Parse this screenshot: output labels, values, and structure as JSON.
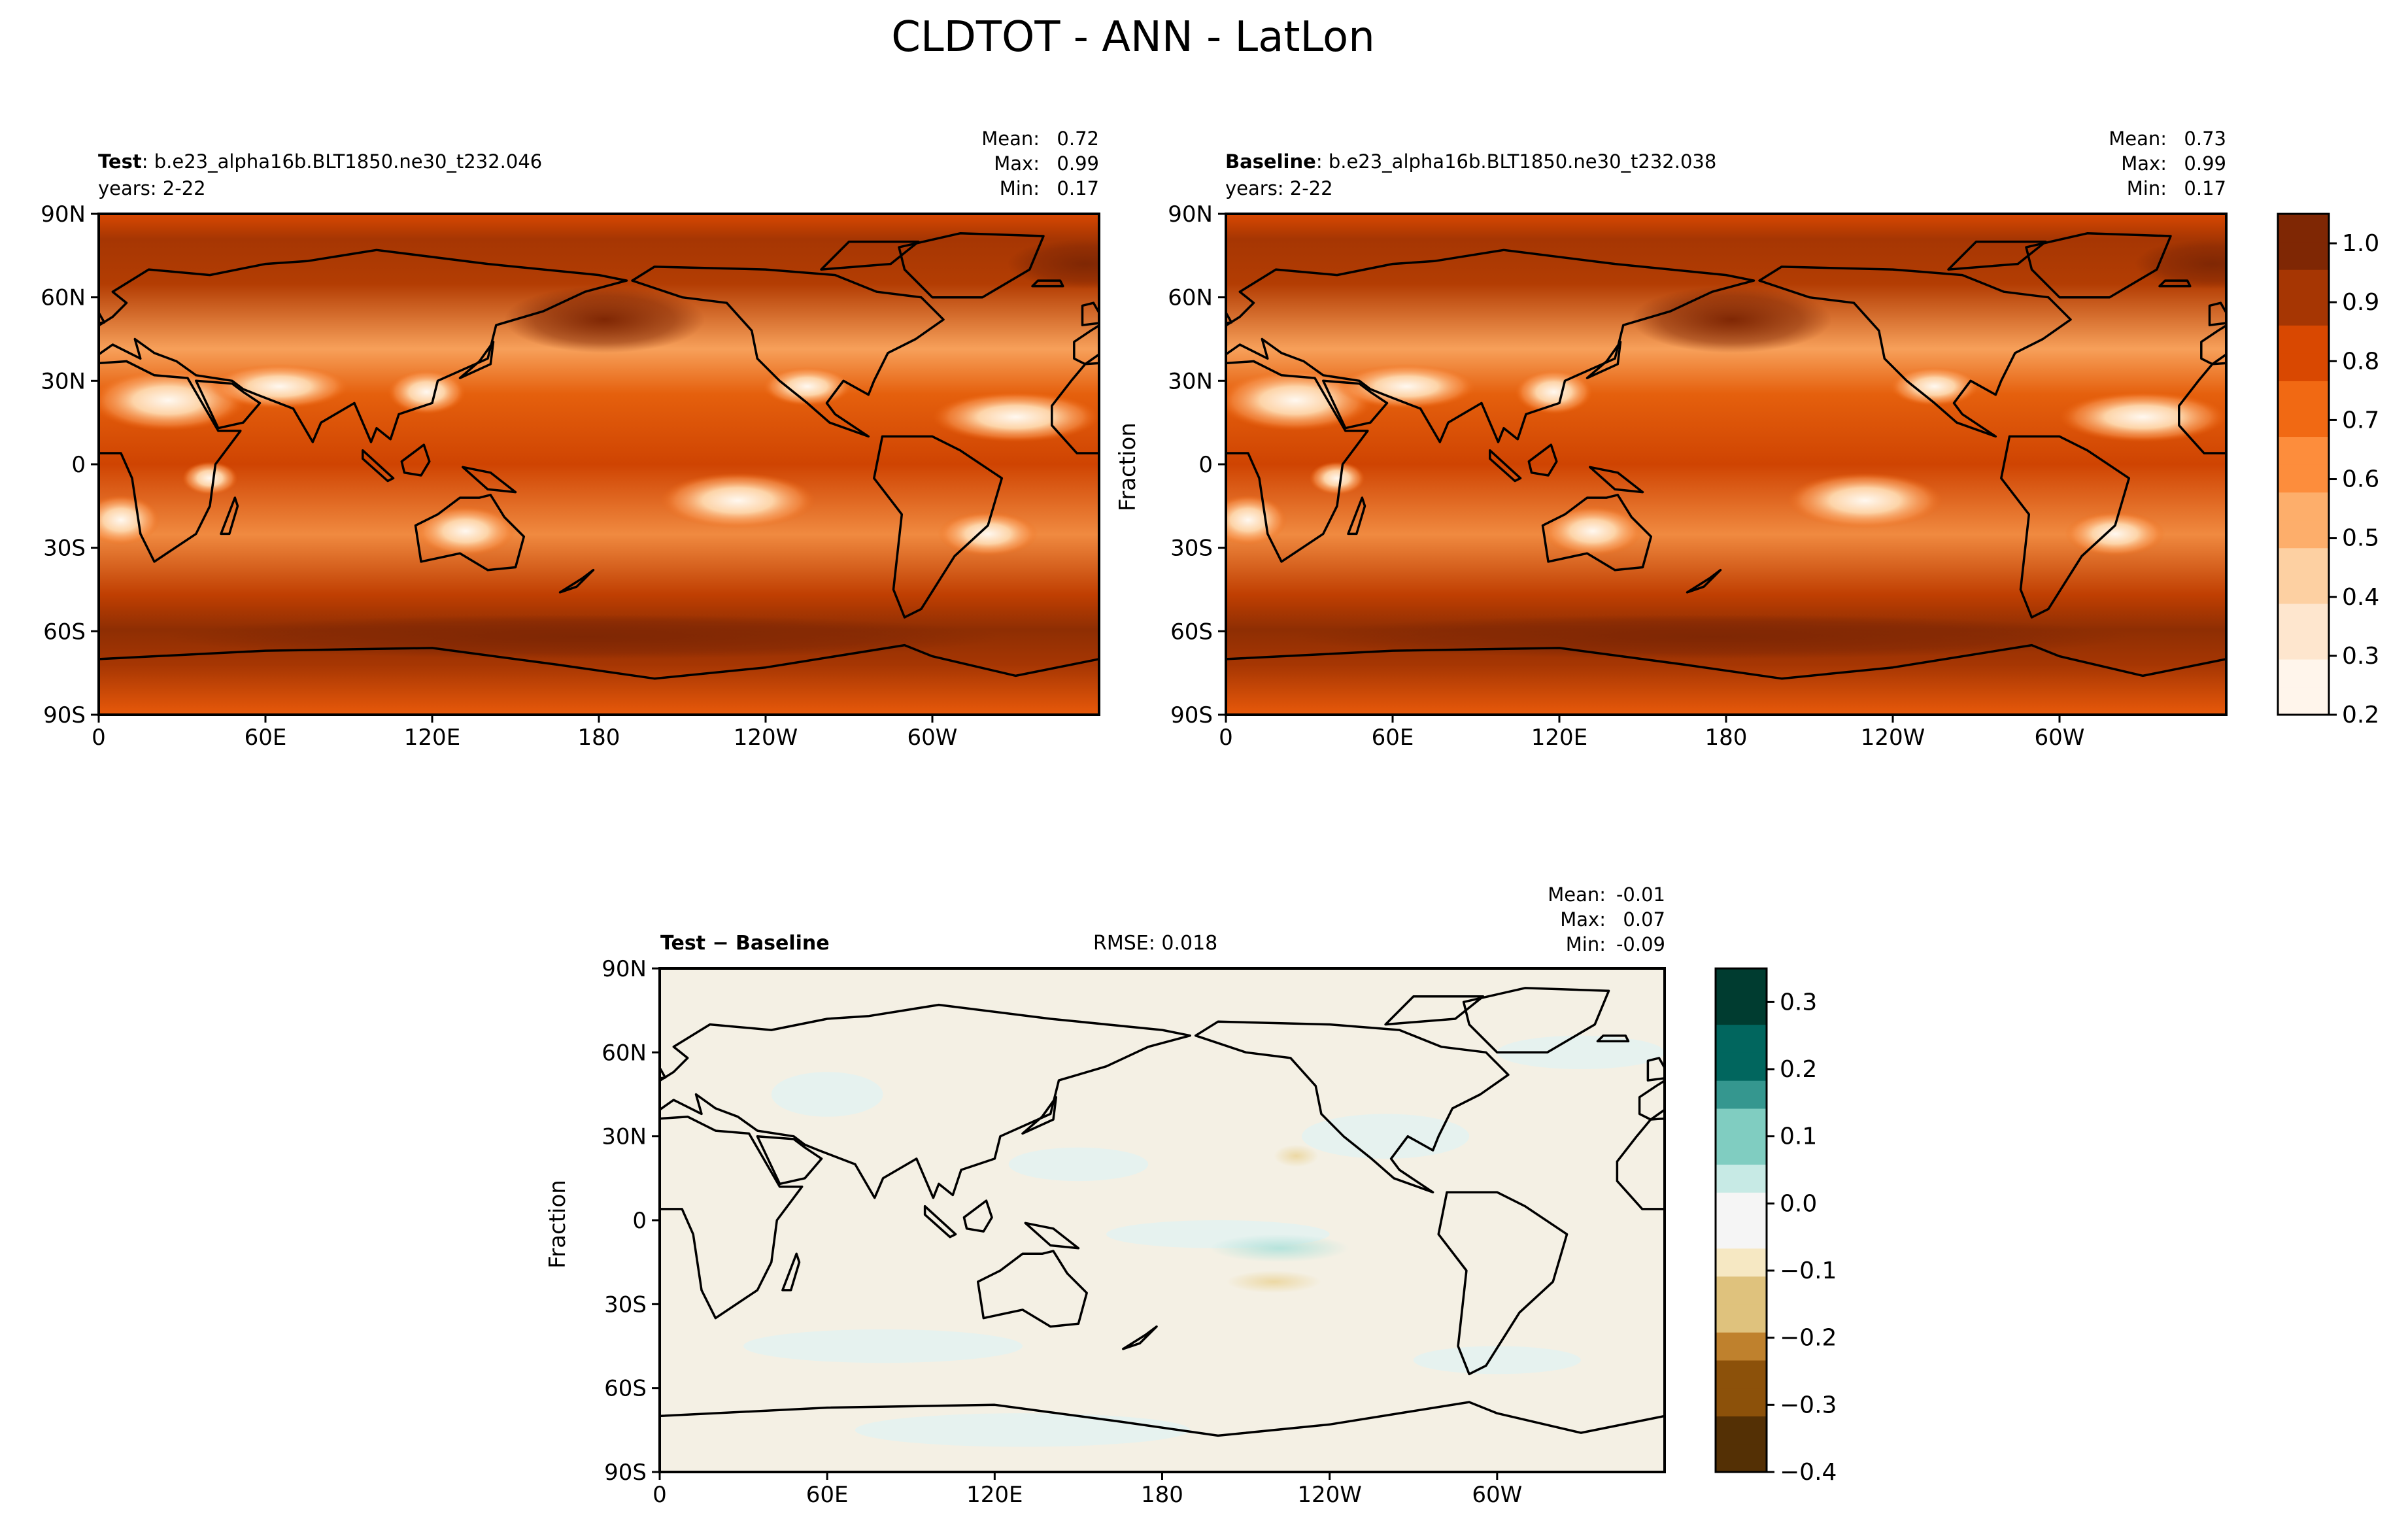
{
  "figure": {
    "title": "CLDTOT - ANN - LatLon"
  },
  "colors": {
    "main_cmap": [
      "#fff5eb",
      "#fee6ce",
      "#fdd0a2",
      "#fdae6b",
      "#fd8d3c",
      "#f16913",
      "#d94801",
      "#a63603",
      "#7f2704"
    ],
    "diff_cmap": [
      "#543005",
      "#8c510a",
      "#bf812d",
      "#dfc27d",
      "#f6e8c3",
      "#f5f5f5",
      "#c7eae5",
      "#80cdc1",
      "#35978f",
      "#01665e",
      "#003c30"
    ]
  },
  "chart_data": [
    {
      "id": "test",
      "type": "heatmap",
      "label_bold": "Test",
      "label_sep": ": ",
      "case": "b.e23_alpha16b.BLT1850.ne30_t232.046",
      "years": "years: 2-22",
      "stats": {
        "mean_label": "Mean:",
        "mean": "0.72",
        "max_label": "Max:",
        "max": "0.99",
        "min_label": "Min:",
        "min": "0.17"
      },
      "xticks": [
        "0",
        "60E",
        "120E",
        "180",
        "120W",
        "60W"
      ],
      "xtick_values": [
        0,
        60,
        120,
        180,
        240,
        300
      ],
      "yticks": [
        "90N",
        "60N",
        "30N",
        "0",
        "30S",
        "60S",
        "90S"
      ],
      "ytick_values": [
        90,
        60,
        30,
        0,
        -30,
        -60,
        -90
      ],
      "xlim": [
        0,
        360
      ],
      "ylim": [
        -90,
        90
      ],
      "ylabel": ""
    },
    {
      "id": "baseline",
      "type": "heatmap",
      "label_bold": "Baseline",
      "label_sep": ": ",
      "case": "b.e23_alpha16b.BLT1850.ne30_t232.038",
      "years": "years: 2-22",
      "stats": {
        "mean_label": "Mean:",
        "mean": "0.73",
        "max_label": "Max:",
        "max": "0.99",
        "min_label": "Min:",
        "min": "0.17"
      },
      "xticks": [
        "0",
        "60E",
        "120E",
        "180",
        "120W",
        "60W"
      ],
      "xtick_values": [
        0,
        60,
        120,
        180,
        240,
        300
      ],
      "yticks": [
        "90N",
        "60N",
        "30N",
        "0",
        "30S",
        "60S",
        "90S"
      ],
      "ytick_values": [
        90,
        60,
        30,
        0,
        -30,
        -60,
        -90
      ],
      "xlim": [
        0,
        360
      ],
      "ylim": [
        -90,
        90
      ],
      "ylabel": "Fraction",
      "colorbar": {
        "ticks": [
          "1.0",
          "0.9",
          "0.8",
          "0.7",
          "0.6",
          "0.5",
          "0.4",
          "0.3",
          "0.2"
        ],
        "values": [
          1.0,
          0.9,
          0.8,
          0.7,
          0.6,
          0.5,
          0.4,
          0.3,
          0.2
        ],
        "range": [
          0.2,
          1.05
        ]
      }
    },
    {
      "id": "diff",
      "type": "heatmap",
      "label_bold": "Test − Baseline",
      "rmse": "RMSE: 0.018",
      "stats": {
        "mean_label": "Mean:",
        "mean": "-0.01",
        "max_label": "Max:",
        "max": "0.07",
        "min_label": "Min:",
        "min": "-0.09"
      },
      "xticks": [
        "0",
        "60E",
        "120E",
        "180",
        "120W",
        "60W"
      ],
      "xtick_values": [
        0,
        60,
        120,
        180,
        240,
        300
      ],
      "yticks": [
        "90N",
        "60N",
        "30N",
        "0",
        "30S",
        "60S",
        "90S"
      ],
      "ytick_values": [
        90,
        60,
        30,
        0,
        -30,
        -60,
        -90
      ],
      "xlim": [
        0,
        360
      ],
      "ylim": [
        -90,
        90
      ],
      "ylabel": "Fraction",
      "colorbar": {
        "ticks": [
          "0.3",
          "0.2",
          "0.1",
          "0.0",
          "−0.1",
          "−0.2",
          "−0.3",
          "−0.4"
        ],
        "values": [
          0.3,
          0.2,
          0.1,
          0.0,
          -0.1,
          -0.2,
          -0.3,
          -0.4
        ],
        "range": [
          -0.4,
          0.35
        ]
      }
    }
  ]
}
